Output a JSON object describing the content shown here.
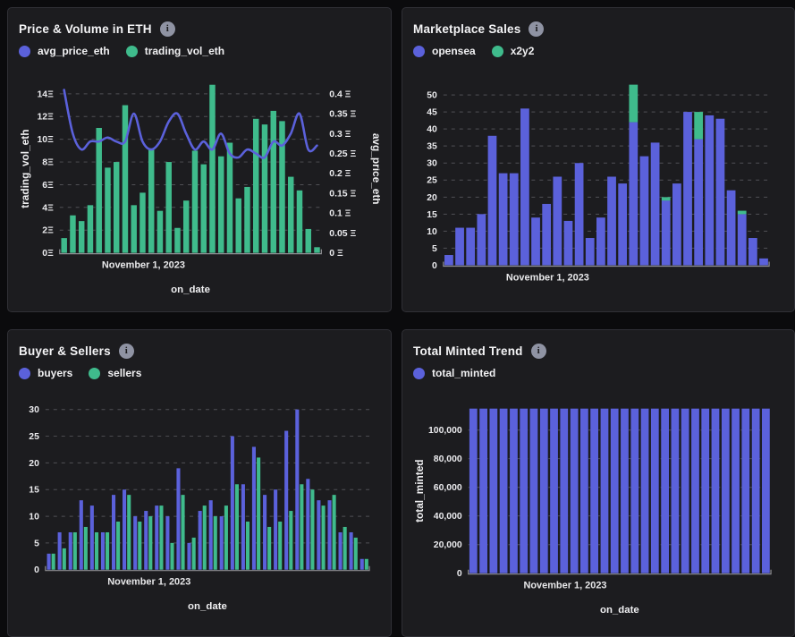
{
  "icons": {
    "info": "i"
  },
  "colors": {
    "purple": "#5b61db",
    "green": "#3fbb8c"
  },
  "chart_data": [
    {
      "title": "Price & Volume in ETH",
      "type": "bar+line",
      "legend": [
        {
          "label": "avg_price_eth",
          "color": "#5b61db"
        },
        {
          "label": "trading_vol_eth",
          "color": "#3fbb8c"
        }
      ],
      "x": {
        "tick_label": "November 1, 2023",
        "axis_label": "on_date"
      },
      "y_left": {
        "label": "trading_vol_eth",
        "ticks": [
          "0Ξ",
          "2Ξ",
          "4Ξ",
          "6Ξ",
          "8Ξ",
          "10Ξ",
          "12Ξ",
          "14Ξ"
        ],
        "tick_values": [
          0,
          2,
          4,
          6,
          8,
          10,
          12,
          14
        ],
        "max": 14.8
      },
      "y_right": {
        "label": "avg_price_eth",
        "ticks": [
          "0 Ξ",
          "0.05 Ξ",
          "0.1 Ξ",
          "0.15 Ξ",
          "0.2 Ξ",
          "0.25 Ξ",
          "0.3 Ξ",
          "0.35 Ξ",
          "0.4 Ξ"
        ],
        "tick_values": [
          0,
          0.05,
          0.1,
          0.15,
          0.2,
          0.25,
          0.3,
          0.35,
          0.4
        ]
      },
      "series": [
        {
          "name": "trading_vol_eth",
          "type": "bar",
          "axis": "left",
          "color": "#3fbb8c",
          "values": [
            1.3,
            3.3,
            2.8,
            4.2,
            11,
            7.5,
            8,
            13,
            4.2,
            5.3,
            9.2,
            3.7,
            8,
            2.2,
            4.6,
            9,
            7.8,
            14.8,
            8.5,
            9.7,
            4.8,
            5.8,
            11.8,
            11.3,
            12.5,
            11.6,
            6.7,
            5.5,
            2.1,
            0.5
          ]
        },
        {
          "name": "avg_price_eth",
          "type": "line",
          "axis": "right",
          "color": "#5b61db",
          "values": [
            0.41,
            0.3,
            0.26,
            0.28,
            0.28,
            0.29,
            0.28,
            0.28,
            0.35,
            0.28,
            0.26,
            0.28,
            0.33,
            0.35,
            0.3,
            0.26,
            0.28,
            0.26,
            0.3,
            0.25,
            0.24,
            0.26,
            0.25,
            0.24,
            0.28,
            0.27,
            0.3,
            0.35,
            0.26,
            0.27
          ]
        }
      ]
    },
    {
      "title": "Marketplace Sales",
      "type": "stacked-bar",
      "legend": [
        {
          "label": "opensea",
          "color": "#5b61db"
        },
        {
          "label": "x2y2",
          "color": "#3fbb8c"
        }
      ],
      "x": {
        "tick_label": "November 1, 2023",
        "axis_label": null
      },
      "y_left": {
        "label": null,
        "ticks": [
          "0",
          "5",
          "10",
          "15",
          "20",
          "25",
          "30",
          "35",
          "40",
          "45",
          "50"
        ],
        "tick_values": [
          0,
          5,
          10,
          15,
          20,
          25,
          30,
          35,
          40,
          45,
          50
        ],
        "max": 53.5
      },
      "series": [
        {
          "name": "opensea",
          "type": "bar",
          "color": "#5b61db",
          "values": [
            3,
            11,
            11,
            15,
            38,
            27,
            27,
            46,
            14,
            18,
            26,
            13,
            30,
            8,
            14,
            26,
            24,
            42,
            32,
            36,
            19,
            24,
            45,
            37,
            44,
            43,
            22,
            15,
            8,
            2
          ]
        },
        {
          "name": "x2y2",
          "type": "bar",
          "color": "#3fbb8c",
          "values": [
            0,
            0,
            0,
            0,
            0,
            0,
            0,
            0,
            0,
            0,
            0,
            0,
            0,
            0,
            0,
            0,
            0,
            11,
            0,
            0,
            1,
            0,
            0,
            8,
            0,
            0,
            0,
            1,
            0,
            0
          ]
        }
      ]
    },
    {
      "title": "Buyer & Sellers",
      "type": "grouped-bar",
      "legend": [
        {
          "label": "buyers",
          "color": "#5b61db"
        },
        {
          "label": "sellers",
          "color": "#3fbb8c"
        }
      ],
      "x": {
        "tick_label": "November 1, 2023",
        "axis_label": "on_date"
      },
      "y_left": {
        "label": null,
        "ticks": [
          "0",
          "5",
          "10",
          "15",
          "20",
          "25",
          "30"
        ],
        "tick_values": [
          0,
          5,
          10,
          15,
          20,
          25,
          30
        ],
        "max": 30.5
      },
      "series": [
        {
          "name": "buyers",
          "type": "bar",
          "color": "#5b61db",
          "values": [
            3,
            7,
            7,
            13,
            12,
            7,
            14,
            15,
            10,
            11,
            12,
            10,
            19,
            5,
            11,
            13,
            10,
            25,
            16,
            23,
            14,
            15,
            26,
            30,
            17,
            13,
            13,
            7,
            7,
            2
          ]
        },
        {
          "name": "sellers",
          "type": "bar",
          "color": "#3fbb8c",
          "values": [
            3,
            4,
            7,
            8,
            7,
            7,
            9,
            14,
            9,
            10,
            12,
            5,
            14,
            6,
            12,
            10,
            12,
            16,
            9,
            21,
            8,
            9,
            11,
            16,
            15,
            12,
            14,
            8,
            6,
            2
          ]
        }
      ]
    },
    {
      "title": "Total Minted Trend",
      "type": "bar",
      "legend": [
        {
          "label": "total_minted",
          "color": "#5b61db"
        }
      ],
      "x": {
        "tick_label": "November 1, 2023",
        "axis_label": "on_date"
      },
      "y_left": {
        "label": "total_minted",
        "ticks": [
          "0",
          "20,000",
          "40,000",
          "60,000",
          "80,000",
          "100,000"
        ],
        "tick_values": [
          0,
          20000,
          40000,
          60000,
          80000,
          100000
        ],
        "max": 115000
      },
      "series": [
        {
          "name": "total_minted",
          "type": "bar",
          "color": "#5b61db",
          "values": [
            115000,
            115000,
            115000,
            115000,
            115000,
            115000,
            115000,
            115000,
            115000,
            115000,
            115000,
            115000,
            115000,
            115000,
            115000,
            115000,
            115000,
            115000,
            115000,
            115000,
            115000,
            115000,
            115000,
            115000,
            115000,
            115000,
            115000,
            115000,
            115000,
            115000
          ]
        }
      ]
    }
  ]
}
